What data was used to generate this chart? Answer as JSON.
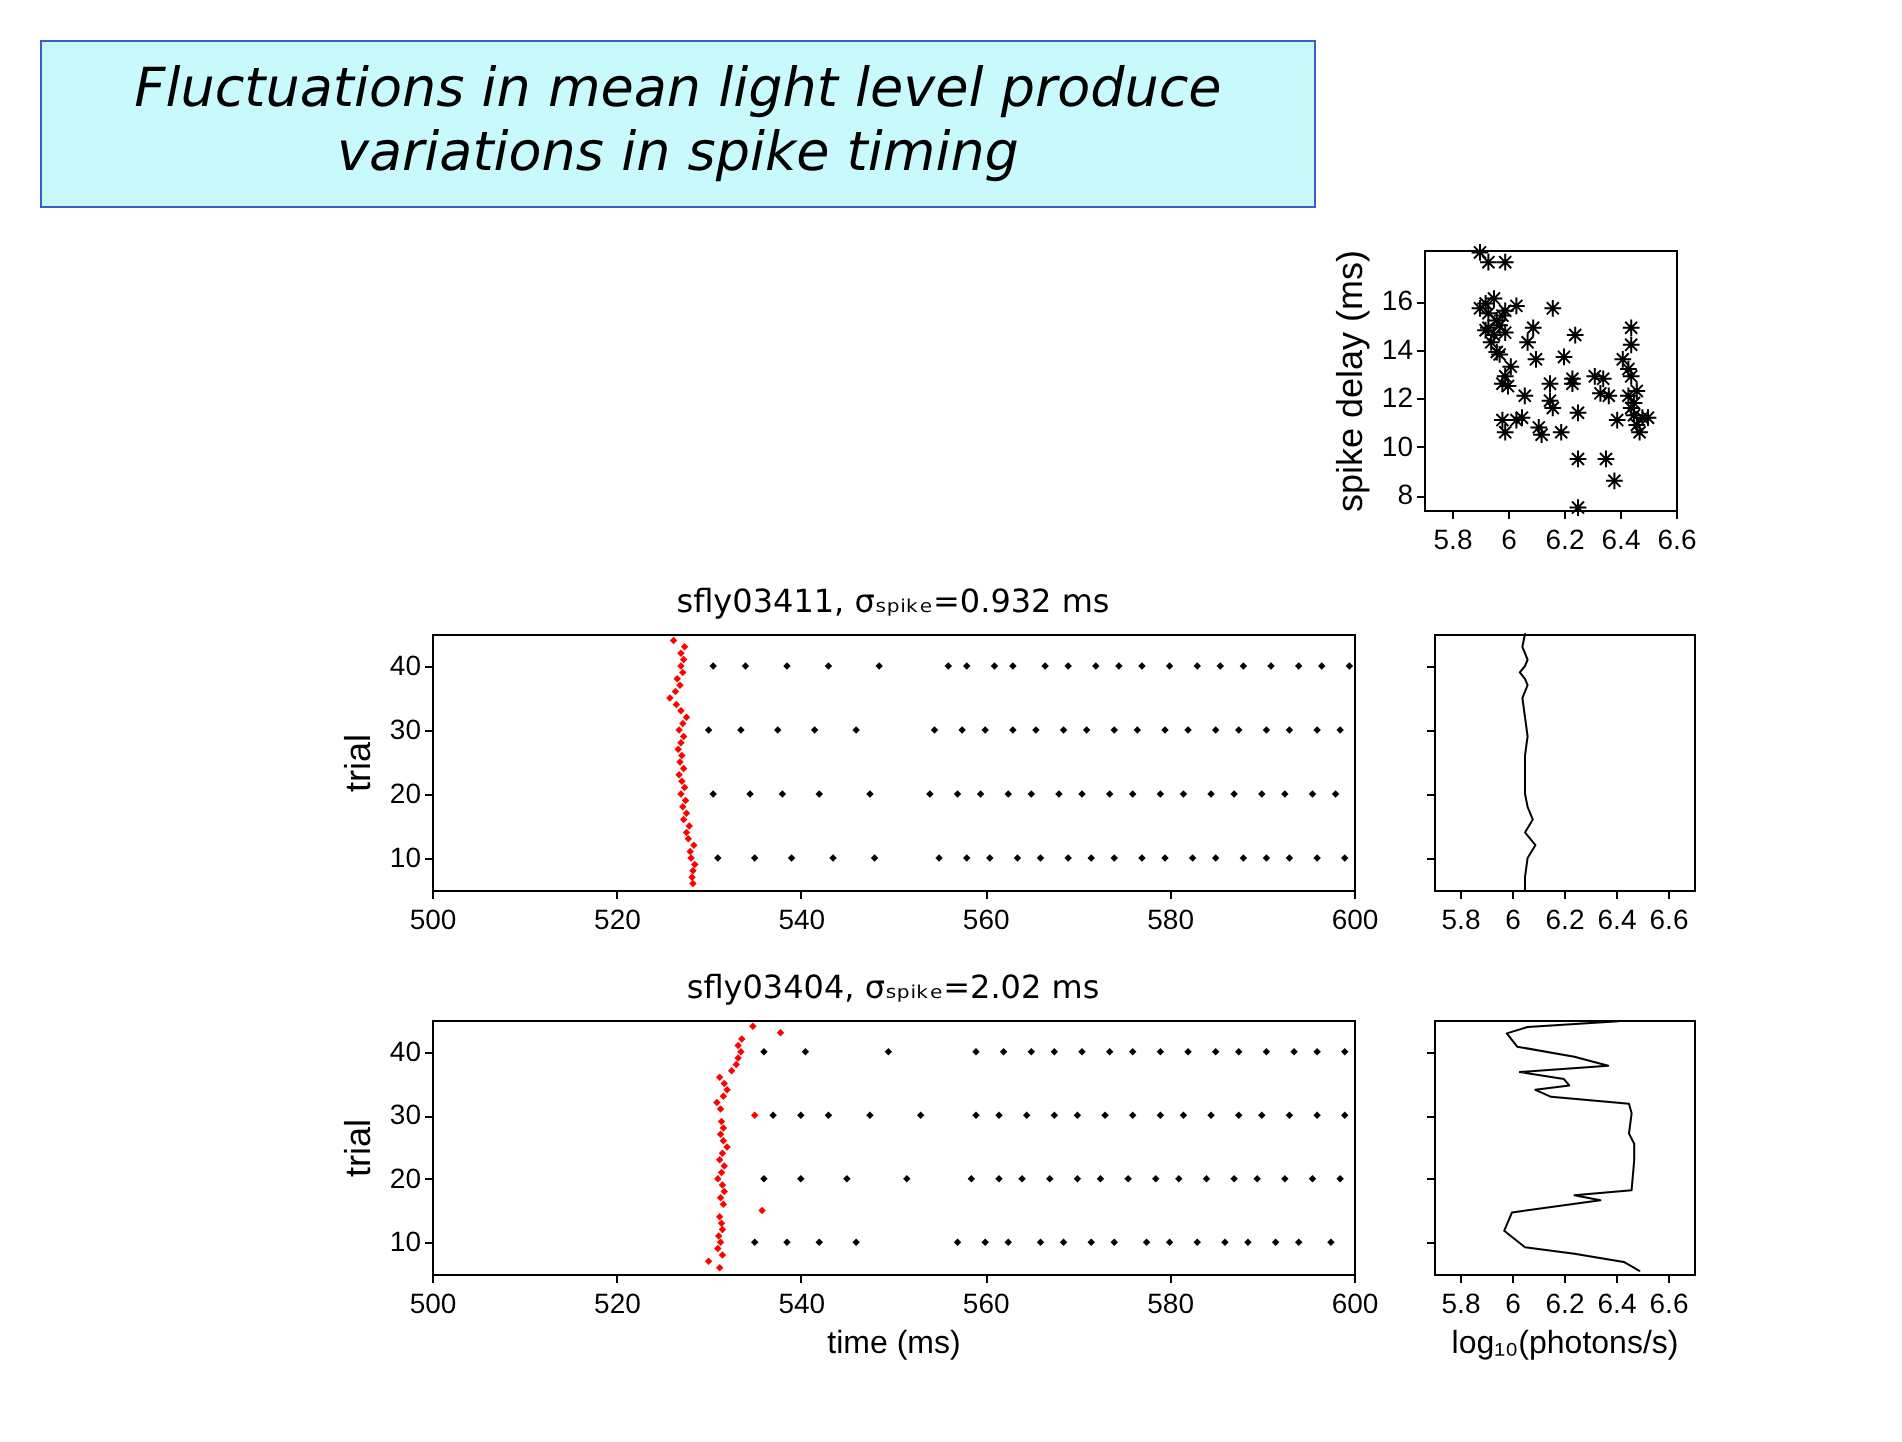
{
  "chart_data": [
    {
      "type": "other",
      "title": "Fluctuations in mean light level  produce variations in spike timing"
    },
    {
      "type": "scatter",
      "ylabel": "spike delay (ms)",
      "marker": "cross",
      "xlim": [
        5.7,
        6.6
      ],
      "xticks": [
        5.8,
        6,
        6.2,
        6.4,
        6.6
      ],
      "ylim": [
        7.4,
        18.1
      ],
      "yticks": [
        8,
        10,
        12,
        14,
        16
      ],
      "grid": false,
      "series": [
        {
          "color": "#000000",
          "x": [
            5.9,
            5.93,
            5.99,
            5.9,
            5.92,
            5.93,
            5.95,
            5.96,
            5.93,
            5.95,
            5.97,
            5.98,
            5.99,
            5.92,
            5.94,
            5.96,
            5.97,
            5.99,
            6.03,
            6.09,
            6.07,
            6.1,
            6.16,
            6.24,
            6.2,
            6.15,
            6.15,
            6.16,
            6.23,
            6.23,
            6.06,
            5.98,
            5.99,
            6.01,
            6.0,
            5.98,
            5.99,
            6.03,
            6.05,
            6.11,
            6.12,
            6.19,
            6.25,
            6.25,
            6.35,
            6.38,
            6.25,
            6.31,
            6.34,
            6.33,
            6.36,
            6.39,
            6.41,
            6.43,
            6.44,
            6.44,
            6.44,
            6.43,
            6.44,
            6.45,
            6.46,
            6.47,
            6.48,
            6.45,
            6.5,
            6.46
          ],
          "values": [
            18.0,
            17.6,
            17.6,
            15.7,
            15.9,
            15.5,
            16.1,
            15.2,
            14.9,
            14.6,
            15.0,
            15.4,
            15.6,
            14.8,
            14.3,
            13.9,
            13.8,
            14.7,
            15.8,
            14.9,
            14.3,
            13.6,
            15.7,
            14.6,
            13.7,
            12.6,
            11.9,
            11.6,
            12.8,
            12.6,
            12.1,
            12.6,
            12.9,
            13.3,
            12.5,
            11.1,
            10.6,
            11.1,
            11.2,
            10.8,
            10.5,
            10.6,
            11.4,
            9.5,
            9.5,
            8.6,
            7.5,
            12.9,
            12.8,
            12.2,
            12.1,
            11.1,
            13.6,
            13.2,
            14.9,
            14.2,
            12.9,
            12.1,
            11.6,
            11.3,
            10.9,
            10.6,
            11.2,
            11.8,
            11.2,
            12.3
          ]
        }
      ]
    },
    {
      "type": "scatter",
      "title": "sfly03411, σₛₚᵢₖₑ=0.932 ms",
      "ylabel": "trial",
      "marker": "diamond",
      "xlim": [
        500,
        600
      ],
      "xticks": [
        500,
        520,
        540,
        560,
        580,
        600
      ],
      "ylim": [
        5,
        45
      ],
      "yticks": [
        10,
        20,
        30,
        40
      ],
      "grid": false,
      "series": [
        {
          "color": "#ff0000",
          "x": [
            528.3,
            528.2,
            528.3,
            528.5,
            528.1,
            528,
            528.4,
            527.8,
            527.6,
            527.9,
            527.3,
            527.6,
            527.2,
            527.5,
            527,
            527.4,
            527.1,
            526.8,
            527.3,
            526.9,
            527.1,
            526.7,
            527,
            527.3,
            526.8,
            527.2,
            527.6,
            527,
            526.5,
            525.8,
            526.4,
            526.9,
            526.6,
            527.2,
            527,
            527.3,
            527,
            527.4,
            526.2
          ],
          "values": [
            6,
            7,
            8,
            9,
            10,
            11,
            12,
            13,
            14,
            15,
            16,
            17,
            18,
            19,
            20,
            21,
            22,
            23,
            24,
            25,
            26,
            27,
            28,
            29,
            30,
            31,
            32,
            33,
            34,
            35,
            36,
            37,
            38,
            39,
            40,
            41,
            42,
            43,
            44
          ]
        },
        {
          "color": "#000000",
          "x": [
            531,
            535,
            539,
            543.5,
            548,
            555,
            558,
            560.5,
            563.5,
            566,
            569,
            571.5,
            574,
            577,
            579.5,
            582.5,
            585,
            588,
            590.5,
            593,
            596,
            599,
            530.5,
            534.5,
            538,
            542,
            547.5,
            554,
            557,
            559.5,
            562.5,
            565,
            568,
            570.5,
            573.5,
            576,
            579,
            581.5,
            584.5,
            587,
            590,
            592.5,
            595.5,
            598,
            530,
            533.5,
            537.5,
            541.5,
            546,
            554.5,
            557.5,
            560,
            563,
            565.5,
            568.5,
            571,
            574,
            576.5,
            579.5,
            582,
            585,
            587.5,
            590.5,
            593,
            596,
            598.5,
            530.5,
            534,
            538.5,
            543,
            548.5,
            556,
            558,
            561,
            563,
            566.5,
            569,
            572,
            574.5,
            577,
            580,
            583,
            585.5,
            588,
            591,
            594,
            596.5,
            599.5
          ],
          "values": [
            10,
            10,
            10,
            10,
            10,
            10,
            10,
            10,
            10,
            10,
            10,
            10,
            10,
            10,
            10,
            10,
            10,
            10,
            10,
            10,
            10,
            10,
            20,
            20,
            20,
            20,
            20,
            20,
            20,
            20,
            20,
            20,
            20,
            20,
            20,
            20,
            20,
            20,
            20,
            20,
            20,
            20,
            20,
            20,
            30,
            30,
            30,
            30,
            30,
            30,
            30,
            30,
            30,
            30,
            30,
            30,
            30,
            30,
            30,
            30,
            30,
            30,
            30,
            30,
            30,
            30,
            40,
            40,
            40,
            40,
            40,
            40,
            40,
            40,
            40,
            40,
            40,
            40,
            40,
            40,
            40,
            40,
            40,
            40,
            40,
            40,
            40,
            40
          ]
        }
      ]
    },
    {
      "type": "line",
      "xlim": [
        5.7,
        6.7
      ],
      "xticks": [
        5.8,
        6,
        6.2,
        6.4,
        6.6
      ],
      "ylim": [
        5,
        45
      ],
      "yticks": [
        10,
        20,
        30,
        40
      ],
      "tick_labels": "x",
      "grid": false,
      "series": [
        {
          "color": "#000000",
          "x": [
            6.05,
            6.04,
            6.06,
            6.05,
            6.03,
            6.05,
            6.06,
            6.04,
            6.05,
            6.06,
            6.05,
            6.05,
            6.05,
            6.06,
            6.08,
            6.05,
            6.09,
            6.06,
            6.05,
            6.05
          ],
          "values": [
            45,
            43,
            41,
            40,
            39,
            38,
            37,
            35,
            32,
            29,
            26,
            23,
            20,
            18,
            16,
            14,
            12,
            10,
            7,
            5
          ]
        }
      ]
    },
    {
      "type": "scatter",
      "title": "sfly03404, σₛₚᵢₖₑ=2.02 ms",
      "xlabel": "time (ms)",
      "ylabel": "trial",
      "marker": "diamond",
      "xlim": [
        500,
        600
      ],
      "xticks": [
        500,
        520,
        540,
        560,
        580,
        600
      ],
      "ylim": [
        5,
        45
      ],
      "yticks": [
        10,
        20,
        30,
        40
      ],
      "grid": false,
      "series": [
        {
          "color": "#ff0000",
          "x": [
            531.2,
            530,
            531.5,
            531,
            531.3,
            531.1,
            531.5,
            531.4,
            531.2,
            535.8,
            531.6,
            531.3,
            531.7,
            531.5,
            531,
            531.4,
            531.7,
            531.2,
            531.5,
            532,
            531.6,
            531.3,
            531.6,
            531.4,
            535,
            531.3,
            530.9,
            531.6,
            532,
            531.7,
            531.2,
            532.5,
            533,
            533.2,
            533.5,
            533.2,
            533.6,
            537.8,
            534.8
          ],
          "values": [
            6,
            7,
            8,
            9,
            10,
            11,
            12,
            13,
            14,
            15,
            16,
            17,
            18,
            19,
            20,
            21,
            22,
            23,
            24,
            25,
            26,
            27,
            28,
            29,
            30,
            31,
            32,
            33,
            34,
            35,
            36,
            37,
            38,
            39,
            40,
            41,
            42,
            43,
            44
          ]
        },
        {
          "color": "#000000",
          "x": [
            535,
            538.5,
            542,
            546,
            557,
            560,
            562.5,
            566,
            568.5,
            571.5,
            574,
            577.5,
            580,
            583,
            586,
            588.5,
            591.5,
            594,
            597.5,
            536,
            540,
            545,
            551.5,
            558.5,
            561.5,
            564,
            567,
            570,
            572.5,
            575.5,
            578.5,
            581,
            584,
            587,
            589.5,
            592.5,
            595.5,
            598.5,
            537,
            540,
            543,
            547.5,
            553,
            559,
            561.5,
            564.5,
            567.5,
            570,
            573,
            576,
            579,
            581.5,
            584.5,
            587.5,
            590,
            593,
            596,
            599,
            536,
            540.5,
            549.5,
            559,
            562,
            565,
            567.5,
            570.5,
            573.5,
            576,
            579,
            582,
            585,
            587.5,
            590.5,
            593.5,
            596,
            599
          ],
          "values": [
            10,
            10,
            10,
            10,
            10,
            10,
            10,
            10,
            10,
            10,
            10,
            10,
            10,
            10,
            10,
            10,
            10,
            10,
            10,
            20,
            20,
            20,
            20,
            20,
            20,
            20,
            20,
            20,
            20,
            20,
            20,
            20,
            20,
            20,
            20,
            20,
            20,
            20,
            30,
            30,
            30,
            30,
            30,
            30,
            30,
            30,
            30,
            30,
            30,
            30,
            30,
            30,
            30,
            30,
            30,
            30,
            30,
            30,
            40,
            40,
            40,
            40,
            40,
            40,
            40,
            40,
            40,
            40,
            40,
            40,
            40,
            40,
            40,
            40,
            40,
            40
          ]
        }
      ]
    },
    {
      "type": "line",
      "xlabel": "log₁₀(photons/s)",
      "xlim": [
        5.7,
        6.7
      ],
      "xticks": [
        5.8,
        6,
        6.2,
        6.4,
        6.6
      ],
      "ylim": [
        5,
        45
      ],
      "yticks": [
        10,
        20,
        30,
        40
      ],
      "tick_labels": "x",
      "grid": false,
      "series": [
        {
          "color": "#000000",
          "x": [
            6.41,
            6.06,
            5.98,
            6.02,
            6.24,
            6.37,
            6.03,
            6.2,
            6.22,
            6.09,
            6.15,
            6.45,
            6.46,
            6.45,
            6.47,
            6.47,
            6.46,
            6.24,
            6.34,
            6.0,
            5.97,
            6.05,
            6.24,
            6.43,
            6.49
          ],
          "values": [
            44.8,
            43.9,
            42.9,
            40.8,
            39.2,
            37.8,
            36.8,
            35.7,
            34.7,
            34,
            32.9,
            31.8,
            30.3,
            27.1,
            25.5,
            22.9,
            18.2,
            17.4,
            16.6,
            14.7,
            11.8,
            9.2,
            8.2,
            6.9,
            5.5
          ]
        }
      ]
    }
  ]
}
